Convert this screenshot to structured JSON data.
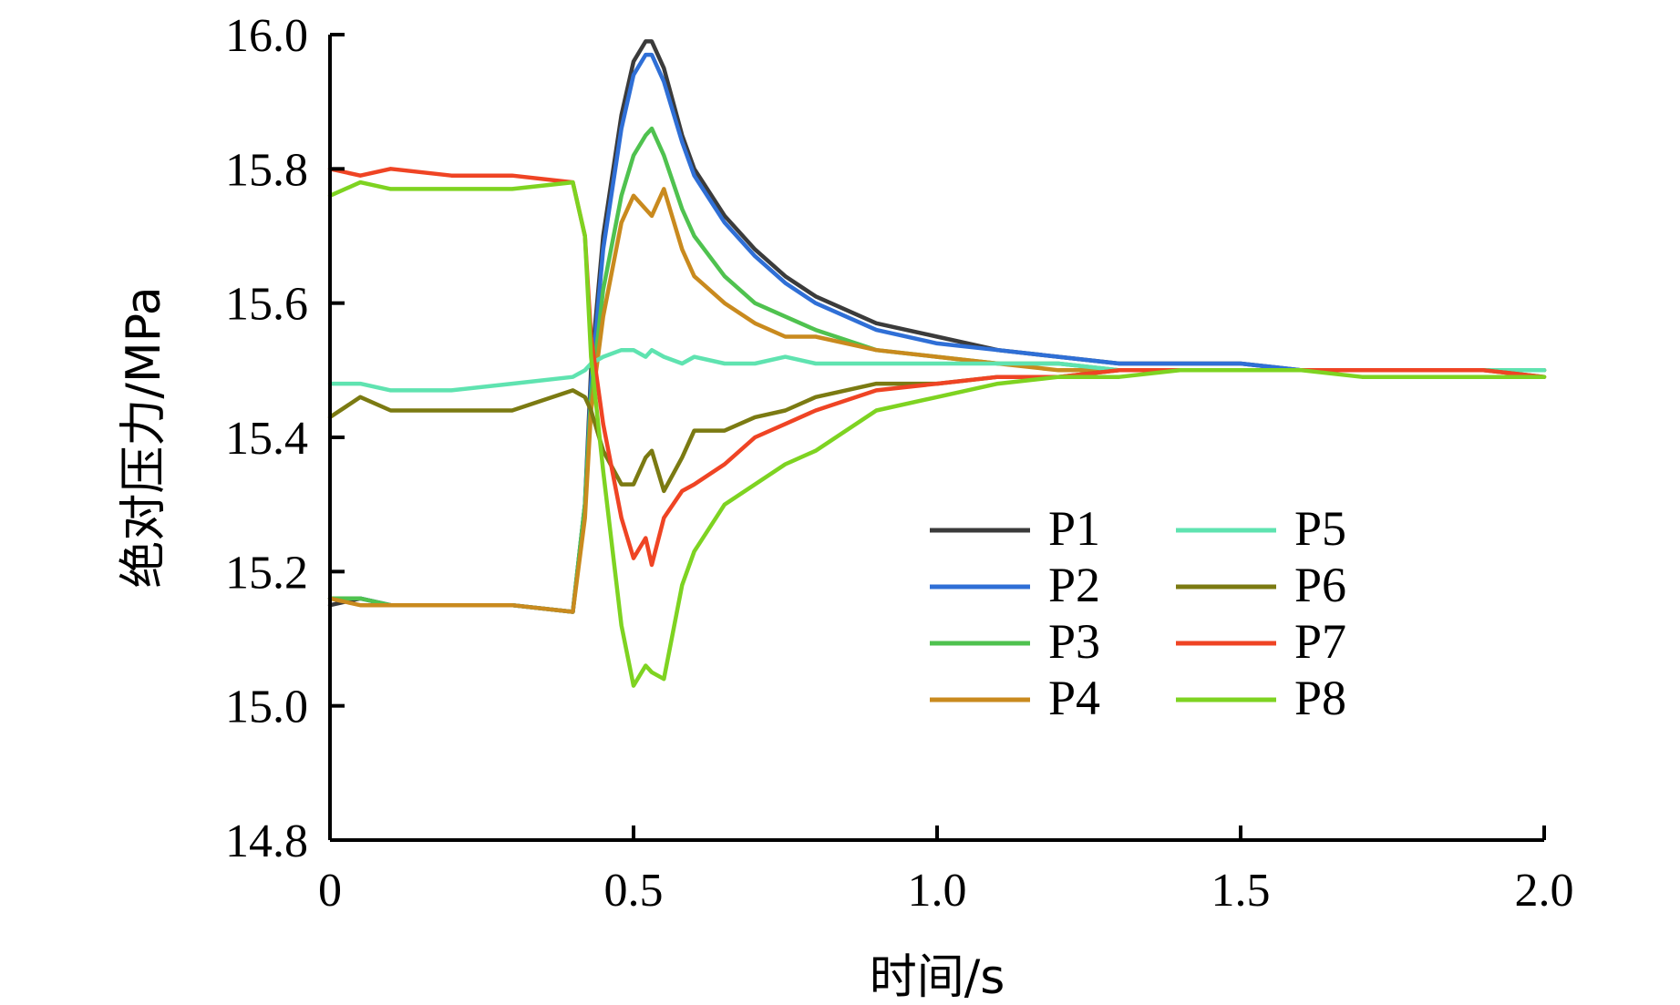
{
  "chart_data": {
    "type": "line",
    "title": "",
    "xlabel": "时间/s",
    "ylabel": "绝对压力/MPa",
    "xlim": [
      0,
      2.0
    ],
    "ylim": [
      14.8,
      16.0
    ],
    "xticks": [
      0,
      0.5,
      1.0,
      1.5,
      2.0
    ],
    "xtick_labels": [
      "0",
      "0.5",
      "1.0",
      "1.5",
      "2.0"
    ],
    "yticks": [
      14.8,
      15.0,
      15.2,
      15.4,
      15.6,
      15.8,
      16.0
    ],
    "ytick_labels": [
      "14.8",
      "15.0",
      "15.2",
      "15.4",
      "15.6",
      "15.8",
      "16.0"
    ],
    "legend_position": "lower-right",
    "x": [
      0,
      0.05,
      0.1,
      0.2,
      0.3,
      0.4,
      0.42,
      0.43,
      0.45,
      0.48,
      0.5,
      0.52,
      0.53,
      0.55,
      0.58,
      0.6,
      0.65,
      0.7,
      0.75,
      0.8,
      0.9,
      1.0,
      1.1,
      1.2,
      1.3,
      1.4,
      1.5,
      1.6,
      1.7,
      1.8,
      1.9,
      2.0
    ],
    "series": [
      {
        "name": "P1",
        "color": "#3b3b3b",
        "values": [
          15.15,
          15.16,
          15.15,
          15.15,
          15.15,
          15.14,
          15.3,
          15.5,
          15.7,
          15.88,
          15.96,
          15.99,
          15.99,
          15.95,
          15.85,
          15.8,
          15.73,
          15.68,
          15.64,
          15.61,
          15.57,
          15.55,
          15.53,
          15.52,
          15.51,
          15.51,
          15.51,
          15.5,
          15.5,
          15.5,
          15.5,
          15.5
        ]
      },
      {
        "name": "P2",
        "color": "#2f6fd6",
        "values": [
          15.16,
          15.16,
          15.15,
          15.15,
          15.15,
          15.14,
          15.3,
          15.48,
          15.68,
          15.86,
          15.94,
          15.97,
          15.97,
          15.93,
          15.84,
          15.79,
          15.72,
          15.67,
          15.63,
          15.6,
          15.56,
          15.54,
          15.53,
          15.52,
          15.51,
          15.51,
          15.51,
          15.5,
          15.5,
          15.5,
          15.5,
          15.5
        ]
      },
      {
        "name": "P3",
        "color": "#4fc24f",
        "values": [
          15.16,
          15.16,
          15.15,
          15.15,
          15.15,
          15.14,
          15.3,
          15.46,
          15.62,
          15.76,
          15.82,
          15.85,
          15.86,
          15.82,
          15.74,
          15.7,
          15.64,
          15.6,
          15.58,
          15.56,
          15.53,
          15.52,
          15.51,
          15.51,
          15.5,
          15.5,
          15.5,
          15.5,
          15.5,
          15.5,
          15.5,
          15.5
        ]
      },
      {
        "name": "P4",
        "color": "#c98a1e",
        "values": [
          15.16,
          15.15,
          15.15,
          15.15,
          15.15,
          15.14,
          15.28,
          15.44,
          15.58,
          15.72,
          15.76,
          15.74,
          15.73,
          15.77,
          15.68,
          15.64,
          15.6,
          15.57,
          15.55,
          15.55,
          15.53,
          15.52,
          15.51,
          15.5,
          15.5,
          15.5,
          15.5,
          15.5,
          15.5,
          15.5,
          15.5,
          15.5
        ]
      },
      {
        "name": "P5",
        "color": "#5fe3b0",
        "values": [
          15.48,
          15.48,
          15.47,
          15.47,
          15.48,
          15.49,
          15.5,
          15.51,
          15.52,
          15.53,
          15.53,
          15.52,
          15.53,
          15.52,
          15.51,
          15.52,
          15.51,
          15.51,
          15.52,
          15.51,
          15.51,
          15.51,
          15.51,
          15.51,
          15.5,
          15.5,
          15.5,
          15.5,
          15.5,
          15.5,
          15.5,
          15.5
        ]
      },
      {
        "name": "P6",
        "color": "#7b7a12",
        "values": [
          15.43,
          15.46,
          15.44,
          15.44,
          15.44,
          15.47,
          15.46,
          15.44,
          15.38,
          15.33,
          15.33,
          15.37,
          15.38,
          15.32,
          15.37,
          15.41,
          15.41,
          15.43,
          15.44,
          15.46,
          15.48,
          15.48,
          15.49,
          15.49,
          15.5,
          15.5,
          15.5,
          15.5,
          15.5,
          15.5,
          15.5,
          15.49
        ]
      },
      {
        "name": "P7",
        "color": "#ef4424",
        "values": [
          15.8,
          15.79,
          15.8,
          15.79,
          15.79,
          15.78,
          15.7,
          15.55,
          15.42,
          15.28,
          15.22,
          15.25,
          15.21,
          15.28,
          15.32,
          15.33,
          15.36,
          15.4,
          15.42,
          15.44,
          15.47,
          15.48,
          15.49,
          15.49,
          15.5,
          15.5,
          15.5,
          15.5,
          15.5,
          15.5,
          15.5,
          15.49
        ]
      },
      {
        "name": "P8",
        "color": "#7ed321",
        "values": [
          15.76,
          15.78,
          15.77,
          15.77,
          15.77,
          15.78,
          15.7,
          15.52,
          15.35,
          15.12,
          15.03,
          15.06,
          15.05,
          15.04,
          15.18,
          15.23,
          15.3,
          15.33,
          15.36,
          15.38,
          15.44,
          15.46,
          15.48,
          15.49,
          15.49,
          15.5,
          15.5,
          15.5,
          15.49,
          15.49,
          15.49,
          15.49
        ]
      }
    ]
  }
}
